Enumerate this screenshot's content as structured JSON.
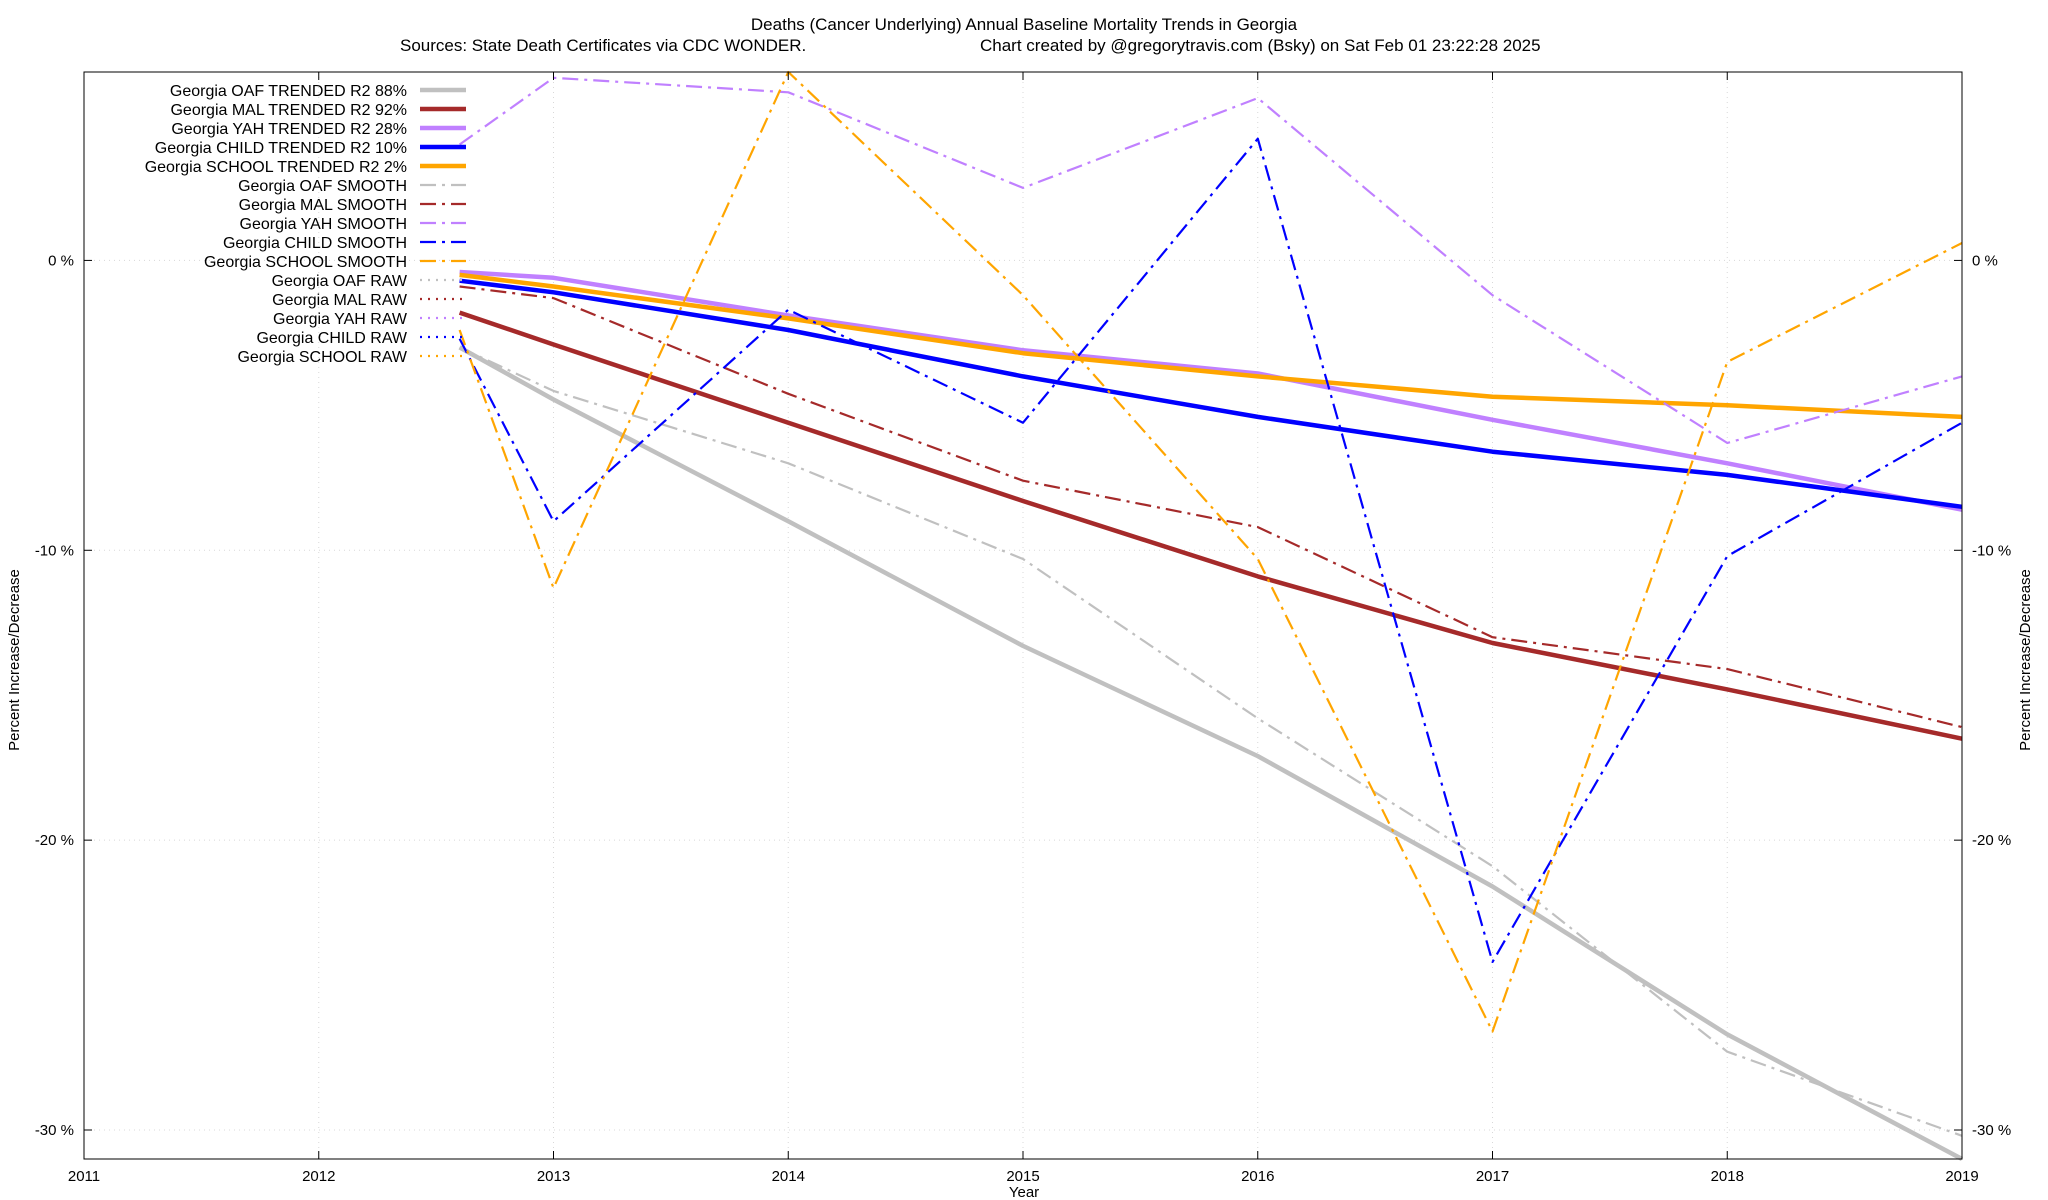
{
  "chart_data": {
    "type": "line",
    "title": "Deaths (Cancer Underlying)  Annual Baseline Mortality Trends in Georgia",
    "subtitle_left": "Sources: State Death Certificates via CDC WONDER.",
    "subtitle_right": "Chart created by @gregorytravis.com (Bsky) on Sat Feb 01 23:22:28 2025",
    "xlabel": "Year",
    "ylabel": "Percent Increase/Decrease",
    "y2label": "Percent Increase/Decrease",
    "xlim": [
      2011,
      2019
    ],
    "ylim": [
      -31,
      6.5
    ],
    "x_ticks": [
      2011,
      2012,
      2013,
      2014,
      2015,
      2016,
      2017,
      2018,
      2019
    ],
    "x_tick_labels": [
      "2011",
      "2012",
      "2013",
      "2014",
      "2015",
      "2016",
      "2017",
      "2018",
      "2019"
    ],
    "y_ticks": [
      0,
      -10,
      -20,
      -30
    ],
    "y_tick_labels": [
      "0 %",
      "-10 %",
      "-20 %",
      "-30 %"
    ],
    "y2_tick_labels": [
      "0 %",
      "-10 %",
      "-20 %",
      "-30 %"
    ],
    "grid": true,
    "legend_position": "top-left",
    "series": [
      {
        "name": "Georgia OAF TRENDED R2  88%",
        "style": "solid",
        "color": "#c0c0c0",
        "x": [
          2012.6,
          2013,
          2014,
          2015,
          2016,
          2017,
          2018,
          2019
        ],
        "y": [
          -3.0,
          -4.8,
          -9.0,
          -13.3,
          -17.1,
          -21.6,
          -26.7,
          -31.0
        ]
      },
      {
        "name": "Georgia MAL TRENDED R2  92%",
        "style": "solid",
        "color": "#a52a2a",
        "x": [
          2012.6,
          2013,
          2014,
          2015,
          2016,
          2017,
          2018,
          2019
        ],
        "y": [
          -1.8,
          -2.9,
          -5.6,
          -8.3,
          -10.9,
          -13.2,
          -14.8,
          -16.5
        ]
      },
      {
        "name": "Georgia YAH TRENDED R2  28%",
        "style": "solid",
        "color": "#c080ff",
        "x": [
          2012.6,
          2013,
          2014,
          2015,
          2016,
          2017,
          2018,
          2019
        ],
        "y": [
          -0.4,
          -0.6,
          -1.9,
          -3.1,
          -3.9,
          -5.5,
          -7.0,
          -8.6
        ]
      },
      {
        "name": "Georgia CHILD TRENDED R2  10%",
        "style": "solid",
        "color": "#0000ff",
        "x": [
          2012.6,
          2013,
          2014,
          2015,
          2016,
          2017,
          2018,
          2019
        ],
        "y": [
          -0.7,
          -1.1,
          -2.4,
          -4.0,
          -5.4,
          -6.6,
          -7.4,
          -8.5
        ]
      },
      {
        "name": "Georgia SCHOOL TRENDED R2  2%",
        "style": "solid",
        "color": "#ffa500",
        "x": [
          2012.6,
          2013,
          2014,
          2015,
          2016,
          2017,
          2018,
          2019
        ],
        "y": [
          -0.5,
          -0.9,
          -2.0,
          -3.2,
          -4.0,
          -4.7,
          -5.0,
          -5.4
        ]
      },
      {
        "name": "Georgia OAF SMOOTH",
        "style": "dashdot",
        "color": "#c0c0c0",
        "x": [
          2012.6,
          2013,
          2014,
          2015,
          2016,
          2017,
          2018,
          2019
        ],
        "y": [
          -3.0,
          -4.5,
          -7.0,
          -10.3,
          -15.8,
          -20.9,
          -27.3,
          -30.2
        ]
      },
      {
        "name": "Georgia MAL SMOOTH",
        "style": "dashdot",
        "color": "#a52a2a",
        "x": [
          2012.6,
          2013,
          2014,
          2015,
          2016,
          2017,
          2018,
          2019
        ],
        "y": [
          -0.9,
          -1.3,
          -4.6,
          -7.6,
          -9.2,
          -13.0,
          -14.1,
          -16.1
        ]
      },
      {
        "name": "Georgia YAH SMOOTH",
        "style": "dashdot",
        "color": "#c080ff",
        "x": [
          2012.6,
          2013,
          2014,
          2015,
          2016,
          2017,
          2018,
          2019
        ],
        "y": [
          4.0,
          6.3,
          5.8,
          2.5,
          5.6,
          -1.2,
          -6.3,
          -4.0
        ]
      },
      {
        "name": "Georgia CHILD SMOOTH",
        "style": "dashdot",
        "color": "#0000ff",
        "x": [
          2012.6,
          2013,
          2014,
          2015,
          2016,
          2017,
          2018,
          2019
        ],
        "y": [
          -2.7,
          -9.0,
          -1.7,
          -5.6,
          4.2,
          -24.2,
          -10.2,
          -5.6
        ]
      },
      {
        "name": "Georgia SCHOOL SMOOTH",
        "style": "dashdot",
        "color": "#ffa500",
        "x": [
          2012.6,
          2013,
          2014,
          2015,
          2016,
          2017,
          2018,
          2019
        ],
        "y": [
          -2.4,
          -11.3,
          6.5,
          -1.2,
          -10.3,
          -26.6,
          -3.5,
          0.6
        ]
      },
      {
        "name": "Georgia OAF RAW",
        "style": "dotted",
        "color": "#c0c0c0",
        "x": [],
        "y": []
      },
      {
        "name": "Georgia MAL RAW",
        "style": "dotted",
        "color": "#a52a2a",
        "x": [],
        "y": []
      },
      {
        "name": "Georgia YAH RAW",
        "style": "dotted",
        "color": "#c080ff",
        "x": [],
        "y": []
      },
      {
        "name": "Georgia CHILD RAW",
        "style": "dotted",
        "color": "#0000ff",
        "x": [],
        "y": []
      },
      {
        "name": "Georgia SCHOOL RAW",
        "style": "dotted",
        "color": "#ffa500",
        "x": [],
        "y": []
      }
    ]
  }
}
